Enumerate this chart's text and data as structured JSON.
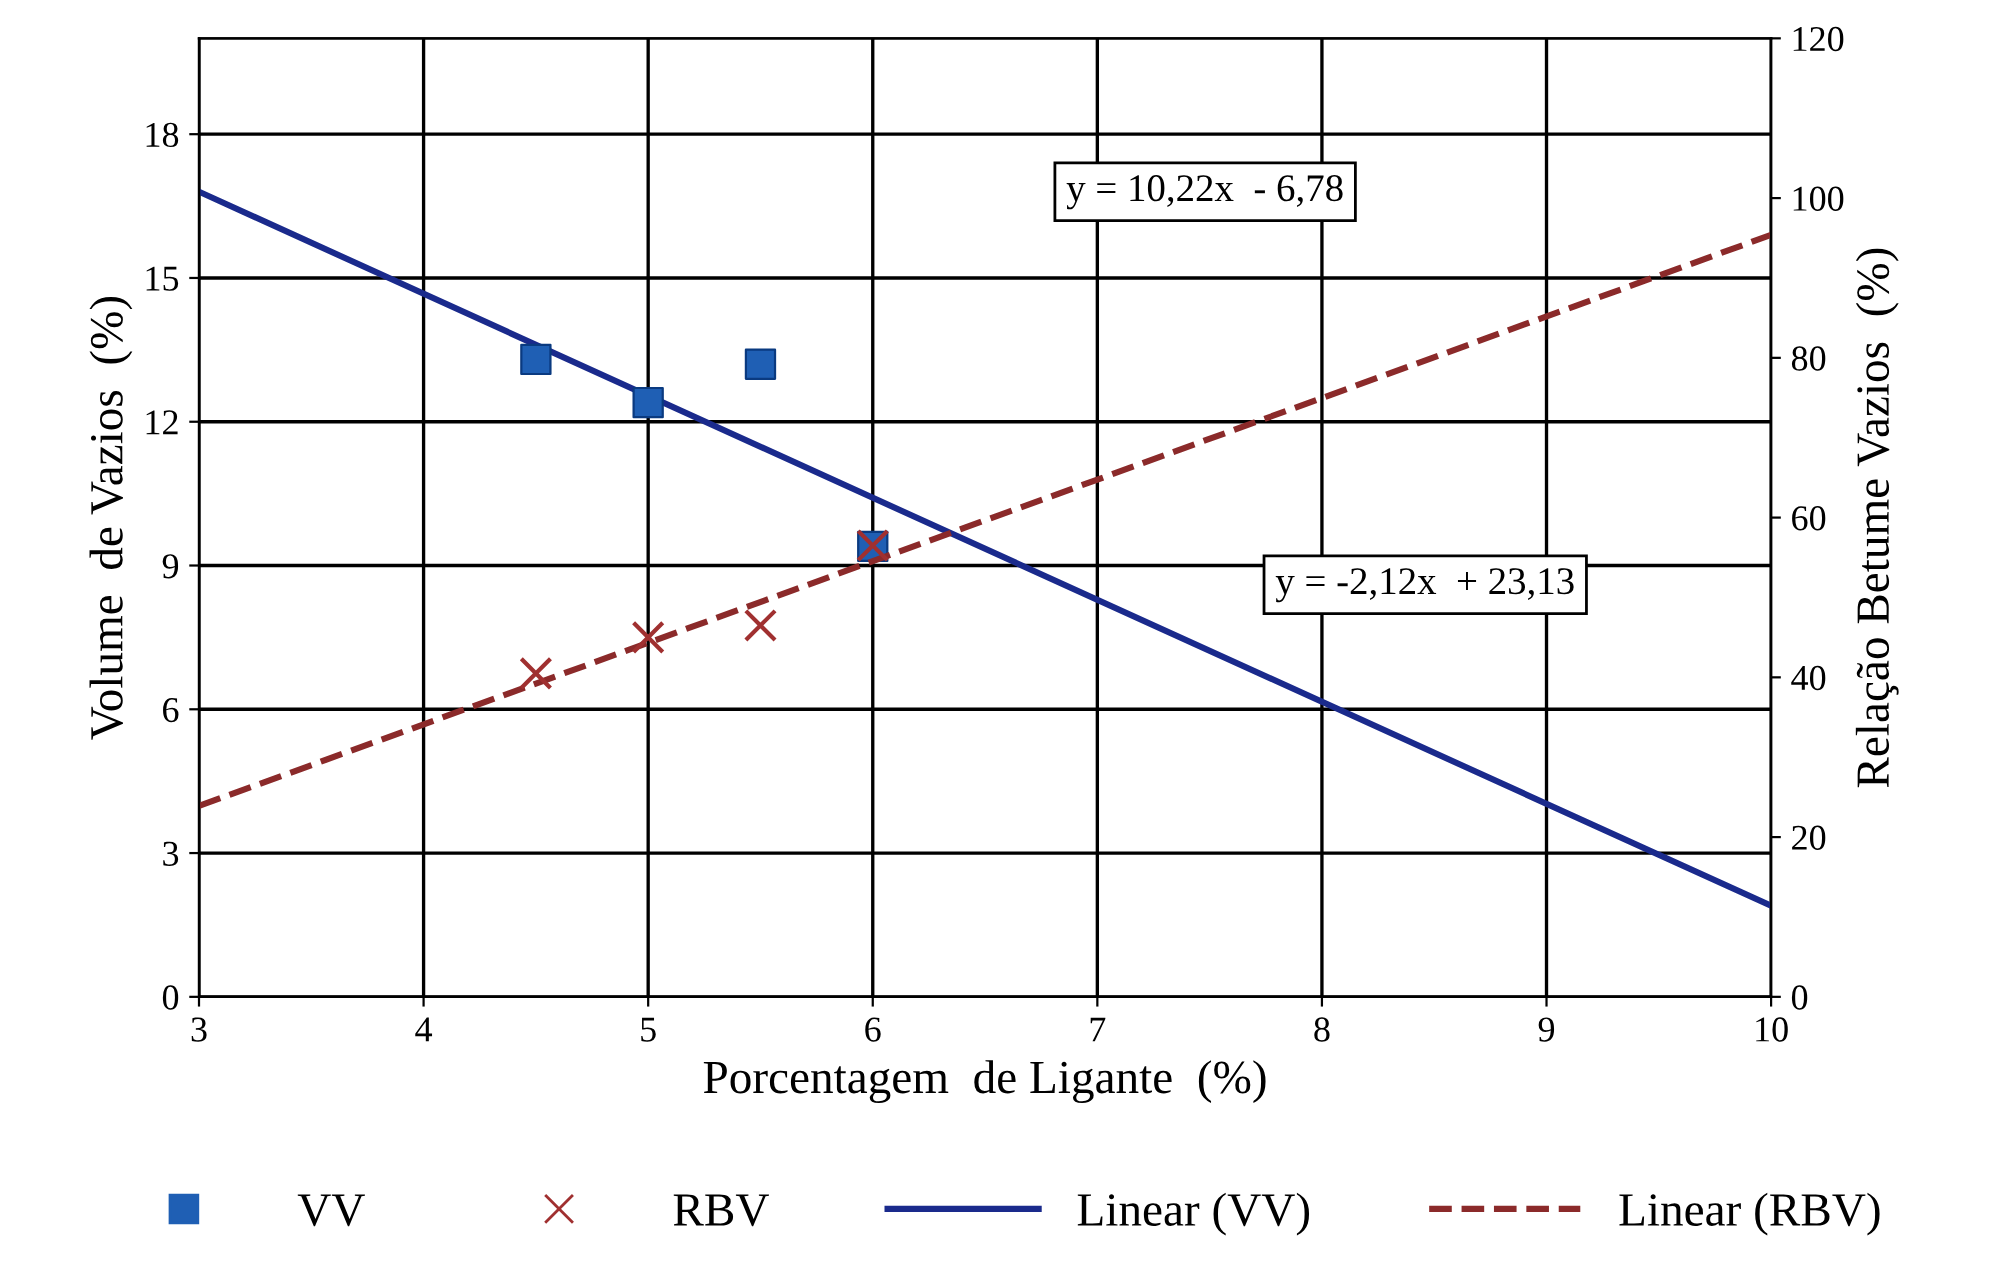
{
  "chart_data": {
    "type": "scatter",
    "xlabel": "Porcentagem  de Ligante  (%)",
    "ylabel": "Volume  de Vazios  (%)",
    "y2label": "Relação Betume Vazios  (%)",
    "xlim": [
      3,
      10
    ],
    "xticks": [
      3,
      4,
      5,
      6,
      7,
      8,
      9,
      10
    ],
    "ylim": [
      0,
      20
    ],
    "yticks": [
      0,
      3,
      6,
      9,
      12,
      15,
      18
    ],
    "y2lim": [
      0,
      120
    ],
    "y2ticks": [
      0,
      20,
      40,
      60,
      80,
      100,
      120
    ],
    "grid": true,
    "legend": "bottom",
    "series": [
      {
        "name": "VV",
        "color": "#1f5fb4",
        "marker": "square",
        "x": [
          4.5,
          5,
          5.5,
          6
        ],
        "values": [
          13.3,
          12.4,
          13.2,
          9.4
        ]
      },
      {
        "name": "RBV",
        "color": "#a03030",
        "marker": "cross",
        "axis": "y2",
        "x": [
          4.5,
          5,
          5.5,
          6
        ],
        "values": [
          40.5,
          45,
          46.5,
          56.5
        ]
      },
      {
        "name": "Linear (VV)",
        "type": "line",
        "color": "#1a2a8c",
        "line_style": "solid",
        "x": [
          3,
          10
        ],
        "values": [
          16.8,
          1.9
        ]
      },
      {
        "name": "Linear (RBV)",
        "type": "line",
        "color": "#8b2a2a",
        "line_style": "dashed",
        "axis": "y2",
        "x": [
          3,
          10
        ],
        "values": [
          23.9,
          95.4
        ]
      }
    ],
    "annotations": [
      "y = 10,22x  - 6,78",
      "y = -2,12x  + 23,13"
    ]
  }
}
